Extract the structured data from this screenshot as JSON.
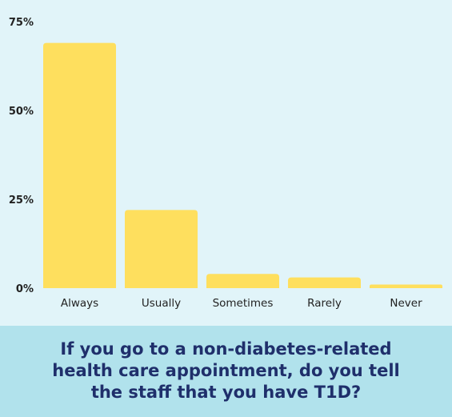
{
  "chart_data": {
    "type": "bar",
    "categories": [
      "Always",
      "Usually",
      "Sometimes",
      "Rarely",
      "Never"
    ],
    "values": [
      69,
      22,
      4,
      3,
      1
    ],
    "y_ticks": [
      "0%",
      "25%",
      "50%",
      "75%"
    ],
    "y_tick_values": [
      0,
      25,
      50,
      75
    ],
    "ylim": [
      0,
      75
    ],
    "grid": false,
    "legend": "none",
    "bar_color": "#fedf5e"
  },
  "caption": {
    "text": "If you go to a non-diabetes-related health care appointment, do you tell the staff that you have T1D?",
    "background": "#b1e2ec",
    "color": "#1f2f6b"
  },
  "background": "#e1f4f9"
}
